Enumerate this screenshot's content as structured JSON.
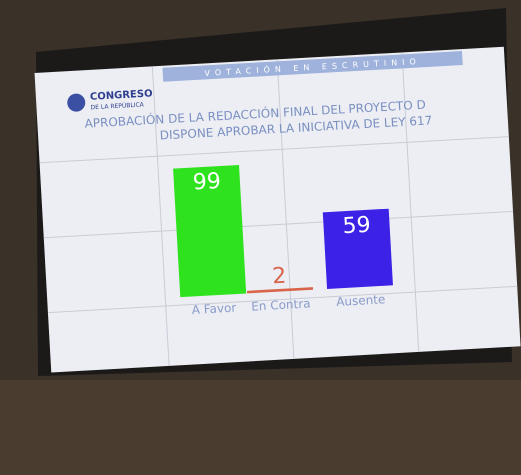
{
  "chart_data": {
    "type": "bar",
    "logo_text": "CONGRESO",
    "logo_subtext": "DE LA REPÚBLICA",
    "banner": "VOTACIÓN EN ESCRUTINIO",
    "title": "APROBACIÓN DE LA REDACCIÓN FINAL DEL PROYECTO D",
    "subtitle": "DISPONE APROBAR LA INICIATIVA DE LEY 617",
    "categories": [
      "A Favor",
      "En Contra",
      "Ausente"
    ],
    "values": [
      99,
      2,
      59
    ],
    "colors": [
      "#2ee21e",
      "#d8644a",
      "#3b22e6"
    ]
  }
}
